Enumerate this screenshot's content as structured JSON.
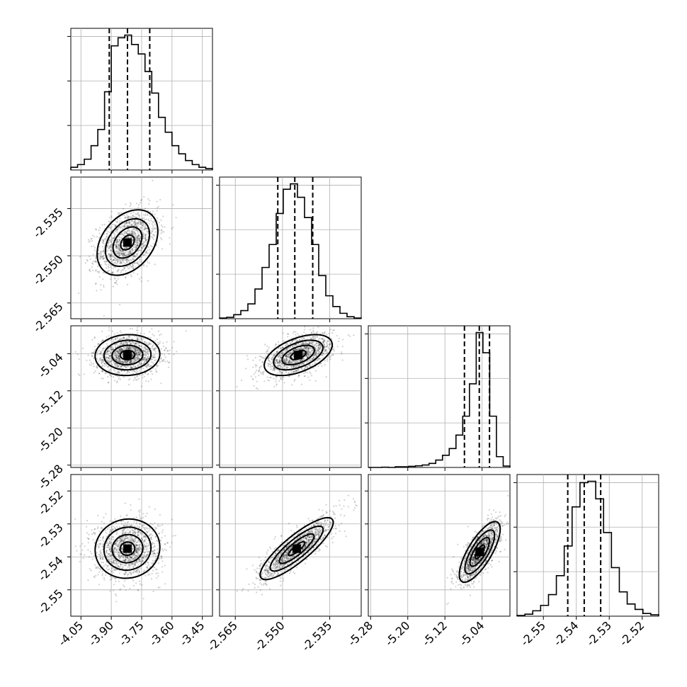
{
  "chart_data": {
    "type": "corner",
    "parameters": [
      {
        "ticks": [
          "-4.05",
          "-3.90",
          "-3.75",
          "-3.60",
          "-3.45"
        ],
        "tick_values": [
          -4.05,
          -3.9,
          -3.75,
          -3.6,
          -3.45
        ],
        "range": [
          -4.1,
          -3.4
        ],
        "quantiles": [
          -3.91,
          -3.82,
          -3.71
        ]
      },
      {
        "ticks": [
          "-2.565",
          "-2.550",
          "-2.535"
        ],
        "tick_values": [
          -2.565,
          -2.55,
          -2.535
        ],
        "range": [
          -2.57,
          -2.525
        ],
        "quantiles": [
          -2.5515,
          -2.5461,
          -2.5404
        ]
      },
      {
        "ticks": [
          "-5.28",
          "-5.20",
          "-5.12",
          "-5.04"
        ],
        "tick_values": [
          -5.28,
          -5.2,
          -5.12,
          -5.04
        ],
        "range": [
          -5.285,
          -4.98
        ],
        "quantiles": [
          -5.078,
          -5.046,
          -5.024
        ]
      },
      {
        "ticks": [
          "-2.55",
          "-2.54",
          "-2.53",
          "-2.52"
        ],
        "tick_values": [
          -2.55,
          -2.54,
          -2.53,
          -2.52
        ],
        "range": [
          -2.558,
          -2.515
        ],
        "quantiles": [
          -2.5426,
          -2.5376,
          -2.5326
        ]
      }
    ],
    "histograms": [
      {
        "panel": "0-0",
        "counts": [
          0.02,
          0.04,
          0.08,
          0.18,
          0.3,
          0.58,
          0.92,
          0.98,
          1.0,
          0.93,
          0.86,
          0.73,
          0.57,
          0.39,
          0.28,
          0.18,
          0.12,
          0.07,
          0.04,
          0.02,
          0.01
        ],
        "ylim": [
          0,
          1.05
        ]
      },
      {
        "panel": "1-1",
        "counts": [
          0.005,
          0.01,
          0.03,
          0.06,
          0.11,
          0.22,
          0.38,
          0.55,
          0.78,
          0.96,
          1.0,
          0.9,
          0.75,
          0.55,
          0.32,
          0.17,
          0.09,
          0.04,
          0.015,
          0.005
        ],
        "ylim": [
          0,
          1.05
        ]
      },
      {
        "panel": "2-2",
        "counts": [
          0.0,
          0.0,
          0.002,
          0.0,
          0.005,
          0.005,
          0.008,
          0.012,
          0.018,
          0.03,
          0.055,
          0.09,
          0.14,
          0.24,
          0.38,
          0.62,
          1.0,
          0.85,
          0.38,
          0.08,
          0.01
        ],
        "ylim": [
          0,
          1.05
        ]
      },
      {
        "panel": "3-3",
        "counts": [
          0.005,
          0.015,
          0.04,
          0.08,
          0.16,
          0.3,
          0.52,
          0.81,
          0.99,
          1.0,
          0.87,
          0.62,
          0.36,
          0.18,
          0.09,
          0.05,
          0.02,
          0.01
        ],
        "ylim": [
          0,
          1.05
        ]
      }
    ],
    "pairs": [
      {
        "panel": "1-0",
        "x_param": 0,
        "y_param": 1,
        "center": [
          -3.82,
          -2.5458
        ],
        "spread": [
          0.075,
          0.0052
        ],
        "rho": 0.35
      },
      {
        "panel": "2-0",
        "x_param": 0,
        "y_param": 2,
        "center": [
          -3.82,
          -5.043
        ],
        "spread": [
          0.08,
          0.022
        ],
        "rho": 0.05
      },
      {
        "panel": "2-1",
        "x_param": 1,
        "y_param": 2,
        "center": [
          -2.545,
          -5.043
        ],
        "spread": [
          0.0054,
          0.022
        ],
        "rho": 0.5
      },
      {
        "panel": "3-0",
        "x_param": 0,
        "y_param": 3,
        "center": [
          -3.82,
          -2.5375
        ],
        "spread": [
          0.08,
          0.0045
        ],
        "rho": 0.05
      },
      {
        "panel": "3-1",
        "x_param": 1,
        "y_param": 3,
        "center": [
          -2.5455,
          -2.5375
        ],
        "spread": [
          0.0058,
          0.0047
        ],
        "rho": 0.85
      },
      {
        "panel": "3-2",
        "x_param": 2,
        "y_param": 3,
        "center": [
          -5.045,
          -2.5385
        ],
        "spread": [
          0.022,
          0.0046
        ],
        "rho": 0.75
      }
    ],
    "grid": true,
    "legend": "none"
  }
}
